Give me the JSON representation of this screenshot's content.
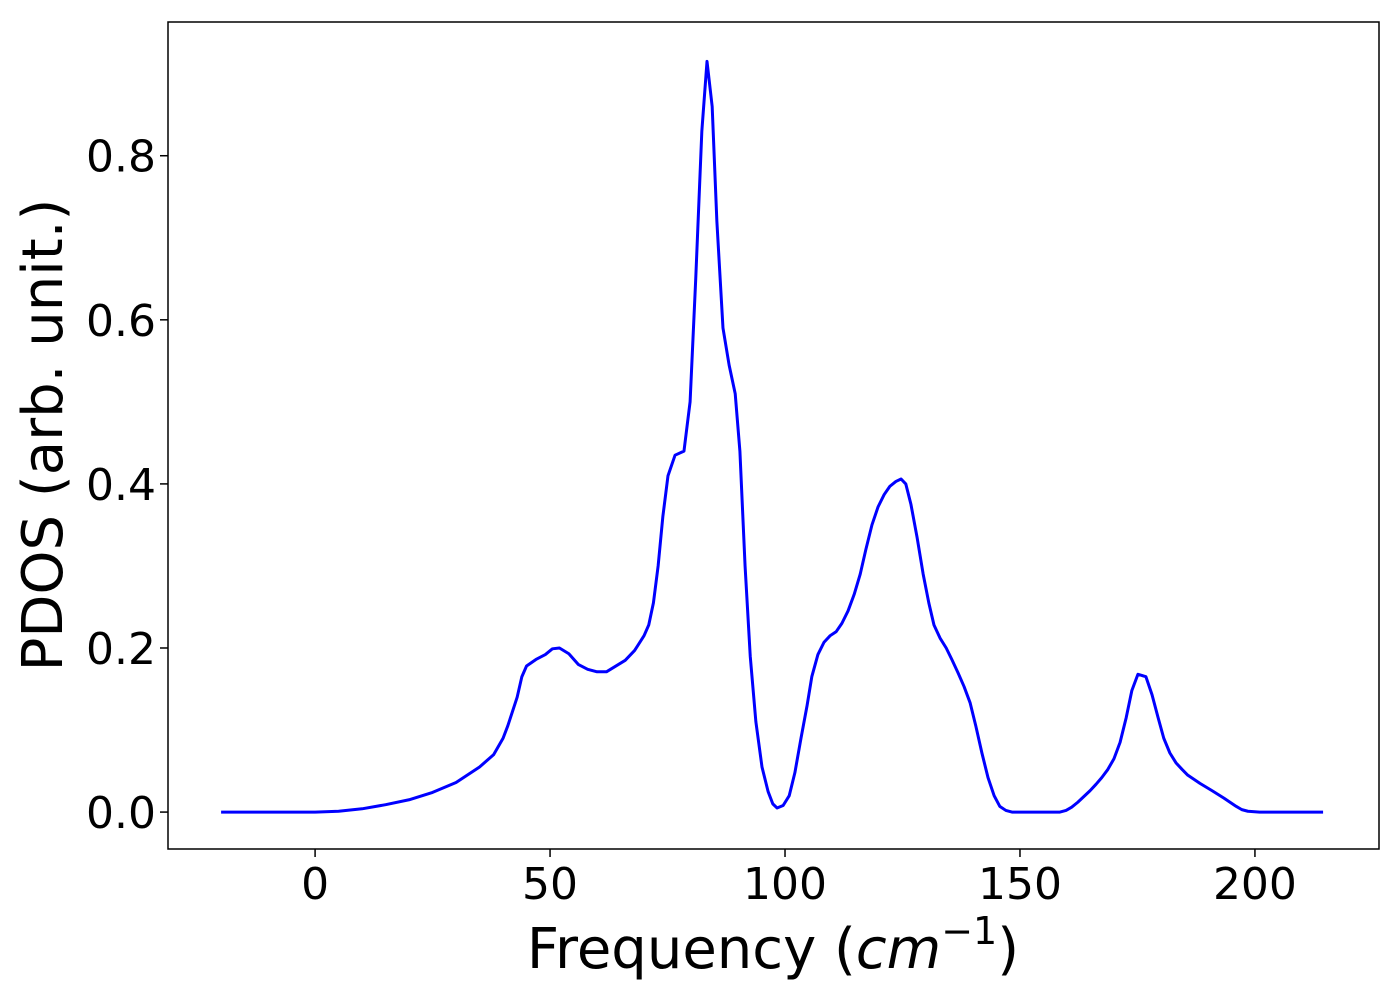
{
  "chart_data": {
    "type": "line",
    "xlabel": [
      "Frequency (",
      "cm",
      "−1",
      ")"
    ],
    "ylabel": "PDOS (arb. unit.)",
    "x": [
      -20,
      0,
      5,
      10,
      15,
      20,
      25,
      30,
      35,
      38,
      40,
      41,
      43,
      44,
      45,
      47,
      49,
      50.5,
      52,
      54,
      56,
      58,
      60,
      62,
      64,
      66,
      68,
      70,
      71,
      72,
      73,
      74,
      75.1,
      76.6,
      78.5,
      79.8,
      81,
      82.3,
      83.4,
      84.5,
      85.5,
      86.8,
      88.1,
      89.4,
      90.4,
      91.5,
      92.6,
      93.8,
      95.1,
      96.4,
      97.4,
      98.3,
      99.6,
      100.9,
      102.1,
      103.4,
      104.7,
      105.7,
      107,
      108.3,
      109.6,
      110.9,
      112.1,
      113.4,
      114.7,
      116,
      117.2,
      118.5,
      119.8,
      121.1,
      122.3,
      123.6,
      124.7,
      125.7,
      126.8,
      128.1,
      129.4,
      130.6,
      131.7,
      133,
      134.3,
      135.5,
      136.8,
      138.1,
      139.4,
      140.6,
      141.9,
      143.2,
      144.5,
      145.7,
      147,
      148.3,
      158.5,
      159.8,
      161,
      162.3,
      163.6,
      164.9,
      166.2,
      167.4,
      168.7,
      170,
      171.3,
      172.6,
      173.8,
      175.1,
      176.8,
      178.1,
      179.4,
      180.6,
      181.9,
      183.2,
      184.5,
      185.7,
      188.3,
      190.9,
      193.4,
      196,
      197.2,
      198.5,
      201,
      214.5
    ],
    "values": [
      0,
      0,
      0.001,
      0.004,
      0.009,
      0.015,
      0.024,
      0.036,
      0.055,
      0.07,
      0.09,
      0.105,
      0.14,
      0.165,
      0.178,
      0.186,
      0.192,
      0.199,
      0.2,
      0.193,
      0.18,
      0.174,
      0.171,
      0.171,
      0.178,
      0.185,
      0.197,
      0.215,
      0.228,
      0.255,
      0.3,
      0.36,
      0.41,
      0.435,
      0.44,
      0.5,
      0.65,
      0.83,
      0.915,
      0.86,
      0.72,
      0.59,
      0.545,
      0.51,
      0.44,
      0.3,
      0.19,
      0.11,
      0.055,
      0.025,
      0.01,
      0.005,
      0.008,
      0.02,
      0.048,
      0.09,
      0.13,
      0.165,
      0.192,
      0.207,
      0.215,
      0.22,
      0.23,
      0.245,
      0.265,
      0.29,
      0.32,
      0.35,
      0.372,
      0.387,
      0.397,
      0.403,
      0.406,
      0.4,
      0.375,
      0.335,
      0.29,
      0.255,
      0.228,
      0.212,
      0.2,
      0.186,
      0.17,
      0.153,
      0.133,
      0.105,
      0.072,
      0.042,
      0.02,
      0.007,
      0.002,
      0,
      0,
      0.002,
      0.006,
      0.012,
      0.019,
      0.026,
      0.034,
      0.042,
      0.052,
      0.065,
      0.085,
      0.115,
      0.148,
      0.168,
      0.165,
      0.143,
      0.115,
      0.09,
      0.072,
      0.06,
      0.052,
      0.045,
      0.035,
      0.026,
      0.017,
      0.007,
      0.003,
      0.001,
      0,
      0
    ],
    "color": "#0000ff",
    "xlim": [
      -31.3,
      226.4
    ],
    "ylim": [
      -0.045,
      0.963
    ],
    "xticks": [
      0,
      50,
      100,
      150,
      200
    ],
    "yticks": [
      {
        "value": 0,
        "label": "0.0"
      },
      0.2,
      0.4,
      0.6,
      0.8
    ]
  }
}
